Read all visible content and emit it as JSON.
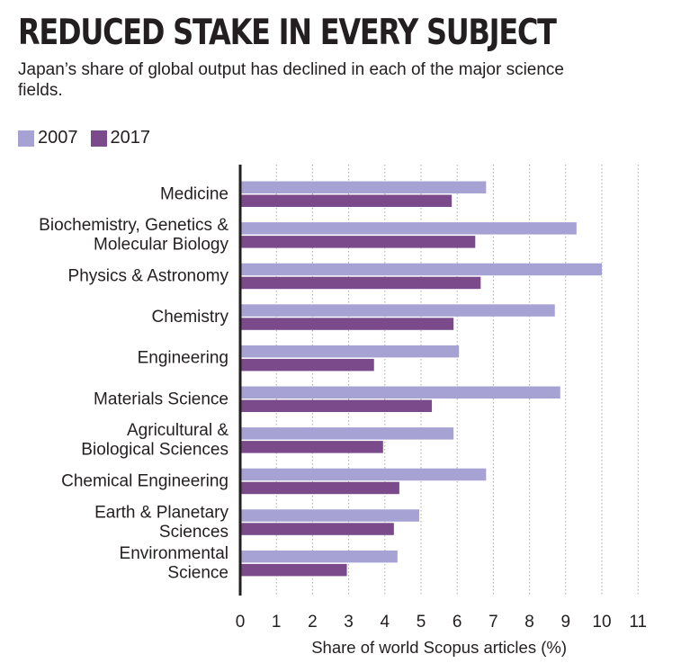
{
  "chart_data": {
    "type": "bar",
    "orientation": "horizontal",
    "title": "REDUCED STAKE IN EVERY SUBJECT",
    "subtitle": "Japan’s share of global output has declined in each of the major science fields.",
    "categories": [
      [
        "Medicine"
      ],
      [
        "Biochemistry, Genetics &",
        "Molecular Biology"
      ],
      [
        "Physics & Astronomy"
      ],
      [
        "Chemistry"
      ],
      [
        "Engineering"
      ],
      [
        "Materials Science"
      ],
      [
        "Agricultural &",
        "Biological Sciences"
      ],
      [
        "Chemical Engineering"
      ],
      [
        "Earth & Planetary",
        "Sciences"
      ],
      [
        "Environmental",
        "Science"
      ]
    ],
    "series": [
      {
        "name": "2007",
        "color": "#a6a3d4",
        "values": [
          6.8,
          9.3,
          10.0,
          8.7,
          6.05,
          8.85,
          5.9,
          6.8,
          4.95,
          4.35
        ]
      },
      {
        "name": "2017",
        "color": "#7b4a8b",
        "values": [
          5.85,
          6.5,
          6.65,
          5.9,
          3.7,
          5.3,
          3.95,
          4.4,
          4.25,
          2.95
        ]
      }
    ],
    "xlabel": "Share of world Scopus articles (%)",
    "ylabel": "",
    "xlim": [
      0,
      11
    ],
    "xticks": [
      "0",
      "1",
      "2",
      "3",
      "4",
      "5",
      "6",
      "7",
      "8",
      "9",
      "10",
      "11"
    ],
    "grid": "vertical dotted",
    "legend": "top-left"
  }
}
